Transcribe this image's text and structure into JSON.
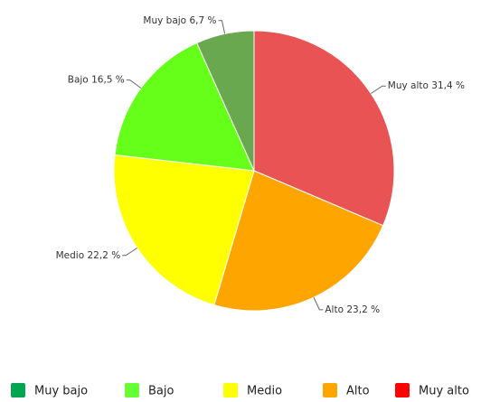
{
  "chart_data": {
    "type": "pie",
    "categories": [
      "Muy alto",
      "Alto",
      "Medio",
      "Bajo",
      "Muy bajo"
    ],
    "values": [
      31.4,
      23.2,
      22.2,
      16.5,
      6.7
    ],
    "value_labels": [
      "31,4 %",
      "23,2 %",
      "22,2 %",
      "16,5 %",
      "6,7 %"
    ],
    "colors": [
      "#e95353",
      "#ffa500",
      "#ffff00",
      "#66ff1a",
      "#6aa84f"
    ],
    "legend": [
      {
        "name": "Muy bajo",
        "color": "#00a651"
      },
      {
        "name": "Bajo",
        "color": "#66ff33"
      },
      {
        "name": "Medio",
        "color": "#ffff00"
      },
      {
        "name": "Alto",
        "color": "#ffa500"
      },
      {
        "name": "Muy alto",
        "color": "#ff0000"
      }
    ]
  }
}
